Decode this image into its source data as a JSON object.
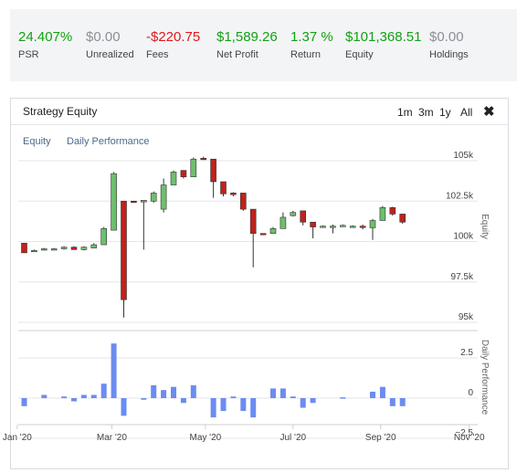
{
  "stats": [
    {
      "value": "24.407%",
      "label": "PSR",
      "color": "#12a112"
    },
    {
      "value": "$0.00",
      "label": "Unrealized",
      "color": "#8a8f96"
    },
    {
      "value": "-$220.75",
      "label": "Fees",
      "color": "#e0181d"
    },
    {
      "value": "$1,589.26",
      "label": "Net Profit",
      "color": "#12a112"
    },
    {
      "value": "1.37 %",
      "label": "Return",
      "color": "#12a112"
    },
    {
      "value": "$101,368.51",
      "label": "Equity",
      "color": "#12a112"
    },
    {
      "value": "$0.00",
      "label": "Holdings",
      "color": "#8a8f96"
    }
  ],
  "panel": {
    "title": "Strategy Equity",
    "ranges": [
      "1m",
      "3m",
      "1y",
      "All"
    ],
    "close_icon": "close-icon",
    "legend": [
      "Equity",
      "Daily Performance"
    ]
  },
  "chart_data": [
    {
      "type": "candlestick",
      "title": "",
      "ylabel": "Equity",
      "ylim": [
        95000,
        106000
      ],
      "yticks": [
        95000,
        97500,
        100000,
        102500,
        105000
      ],
      "ytick_labels": [
        "95k",
        "97.5k",
        "100k",
        "102.5k",
        "105k"
      ],
      "up_color": "#6dbf6d",
      "down_color": "#c0221c",
      "candles": [
        {
          "t": 0,
          "o": 99900,
          "h": 99900,
          "l": 99300,
          "c": 99300
        },
        {
          "t": 1,
          "o": 99400,
          "h": 99500,
          "l": 99350,
          "c": 99450
        },
        {
          "t": 2,
          "o": 99500,
          "h": 99600,
          "l": 99450,
          "c": 99550
        },
        {
          "t": 3,
          "o": 99550,
          "h": 99600,
          "l": 99500,
          "c": 99550
        },
        {
          "t": 4,
          "o": 99550,
          "h": 99700,
          "l": 99500,
          "c": 99650
        },
        {
          "t": 5,
          "o": 99650,
          "h": 99700,
          "l": 99500,
          "c": 99500
        },
        {
          "t": 6,
          "o": 99500,
          "h": 99700,
          "l": 99450,
          "c": 99650
        },
        {
          "t": 7,
          "o": 99600,
          "h": 99900,
          "l": 99600,
          "c": 99800
        },
        {
          "t": 8,
          "o": 99800,
          "h": 100900,
          "l": 99800,
          "c": 100800
        },
        {
          "t": 9,
          "o": 100700,
          "h": 104300,
          "l": 100700,
          "c": 104200
        },
        {
          "t": 10,
          "o": 102500,
          "h": 102500,
          "l": 95300,
          "c": 96400
        },
        {
          "t": 11,
          "o": 102500,
          "h": 102500,
          "l": 102400,
          "c": 102450
        },
        {
          "t": 12,
          "o": 102450,
          "h": 102500,
          "l": 99500,
          "c": 102550
        },
        {
          "t": 13,
          "o": 102500,
          "h": 103100,
          "l": 102400,
          "c": 103000
        },
        {
          "t": 14,
          "o": 102000,
          "h": 103900,
          "l": 101800,
          "c": 103500
        },
        {
          "t": 15,
          "o": 103500,
          "h": 104400,
          "l": 103500,
          "c": 104300
        },
        {
          "t": 16,
          "o": 104400,
          "h": 104400,
          "l": 103900,
          "c": 104000
        },
        {
          "t": 17,
          "o": 104000,
          "h": 105200,
          "l": 104000,
          "c": 105100
        },
        {
          "t": 18,
          "o": 105150,
          "h": 105250,
          "l": 105050,
          "c": 105100
        },
        {
          "t": 19,
          "o": 105100,
          "h": 105100,
          "l": 102700,
          "c": 103700
        },
        {
          "t": 20,
          "o": 103700,
          "h": 103700,
          "l": 102800,
          "c": 102950
        },
        {
          "t": 21,
          "o": 103000,
          "h": 103050,
          "l": 102800,
          "c": 102900
        },
        {
          "t": 22,
          "o": 103000,
          "h": 103000,
          "l": 101900,
          "c": 102000
        },
        {
          "t": 23,
          "o": 102000,
          "h": 102000,
          "l": 98400,
          "c": 100500
        },
        {
          "t": 24,
          "o": 100500,
          "h": 100500,
          "l": 100400,
          "c": 100450
        },
        {
          "t": 25,
          "o": 100500,
          "h": 100900,
          "l": 100500,
          "c": 100800
        },
        {
          "t": 26,
          "o": 100800,
          "h": 101800,
          "l": 100800,
          "c": 101500
        },
        {
          "t": 27,
          "o": 101600,
          "h": 101900,
          "l": 101550,
          "c": 101800
        },
        {
          "t": 28,
          "o": 101900,
          "h": 101900,
          "l": 101000,
          "c": 101200
        },
        {
          "t": 29,
          "o": 101200,
          "h": 101200,
          "l": 100200,
          "c": 100900
        },
        {
          "t": 30,
          "o": 100900,
          "h": 101000,
          "l": 100900,
          "c": 100950
        },
        {
          "t": 31,
          "o": 100950,
          "h": 101050,
          "l": 100500,
          "c": 100950
        },
        {
          "t": 32,
          "o": 100950,
          "h": 101050,
          "l": 100900,
          "c": 101000
        },
        {
          "t": 33,
          "o": 100950,
          "h": 101000,
          "l": 100900,
          "c": 100950
        },
        {
          "t": 34,
          "o": 100950,
          "h": 101050,
          "l": 100750,
          "c": 100900
        },
        {
          "t": 35,
          "o": 100850,
          "h": 101400,
          "l": 100100,
          "c": 101300
        },
        {
          "t": 36,
          "o": 101300,
          "h": 102200,
          "l": 101300,
          "c": 102100
        },
        {
          "t": 37,
          "o": 102100,
          "h": 102150,
          "l": 101600,
          "c": 101700
        },
        {
          "t": 38,
          "o": 101700,
          "h": 101700,
          "l": 101100,
          "c": 101200
        }
      ]
    },
    {
      "type": "bar",
      "title": "",
      "ylabel": "Daily Performance",
      "ylim": [
        -2.5,
        3.5
      ],
      "yticks": [
        -2.5,
        0,
        2.5
      ],
      "ytick_labels": [
        "−2.5",
        "0",
        "2.5"
      ],
      "color": "#6b8cf0",
      "values": [
        -0.5,
        0.0,
        0.2,
        0.0,
        0.1,
        -0.2,
        0.2,
        0.2,
        0.9,
        3.4,
        -1.1,
        0.0,
        -0.1,
        0.8,
        0.5,
        0.7,
        -0.3,
        0.8,
        0.0,
        -1.2,
        -0.8,
        0.1,
        -0.8,
        -1.2,
        0.0,
        0.6,
        0.6,
        0.1,
        -0.6,
        -0.3,
        0.0,
        0.0,
        0.05,
        0.0,
        0.0,
        0.4,
        0.7,
        -0.5,
        -0.5
      ]
    }
  ],
  "x_axis": {
    "labels": [
      "Jan '20",
      "Mar '20",
      "May '20",
      "Jul '20",
      "Sep '20",
      "Nov '20"
    ],
    "label_positions_t": [
      -0.7,
      8.8,
      18.2,
      27.0,
      35.8,
      44.7
    ]
  }
}
